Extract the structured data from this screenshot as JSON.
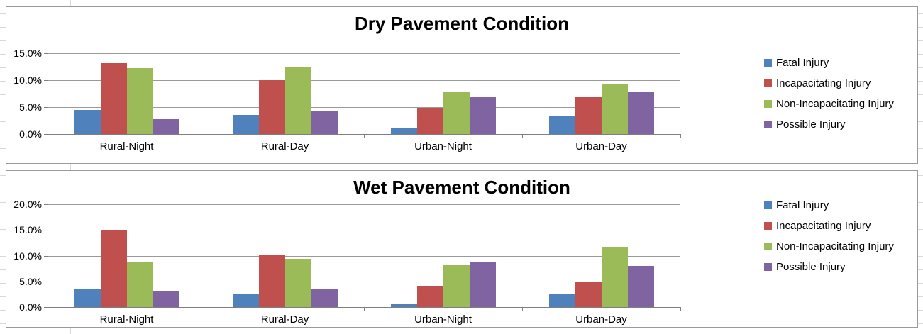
{
  "chart_data": [
    {
      "type": "bar",
      "title": "Dry Pavement Condition",
      "categories": [
        "Rural-Night",
        "Rural-Day",
        "Urban-Night",
        "Urban-Day"
      ],
      "series": [
        {
          "name": "Fatal Injury",
          "color": "#4F81BD",
          "values": [
            4.5,
            3.5,
            1.2,
            3.3
          ]
        },
        {
          "name": "Incapacitating Injury",
          "color": "#C0504D",
          "values": [
            13.2,
            10.0,
            4.9,
            6.9
          ]
        },
        {
          "name": "Non-Incapacitating Injury",
          "color": "#9BBB59",
          "values": [
            12.3,
            12.4,
            7.8,
            9.4
          ]
        },
        {
          "name": "Possible Injury",
          "color": "#8064A2",
          "values": [
            2.7,
            4.4,
            6.9,
            7.7
          ]
        }
      ],
      "xlabel": "",
      "ylabel": "",
      "ylim": [
        0,
        15
      ],
      "ytick_step": 5,
      "ytick_labels": [
        "0.0%",
        "5.0%",
        "10.0%",
        "15.0%"
      ],
      "grid": true,
      "legend_position": "right"
    },
    {
      "type": "bar",
      "title": "Wet Pavement Condition",
      "categories": [
        "Rural-Night",
        "Rural-Day",
        "Urban-Night",
        "Urban-Day"
      ],
      "series": [
        {
          "name": "Fatal Injury",
          "color": "#4F81BD",
          "values": [
            3.6,
            2.5,
            0.7,
            2.5
          ]
        },
        {
          "name": "Incapacitating Injury",
          "color": "#C0504D",
          "values": [
            15.0,
            10.2,
            4.0,
            5.0
          ]
        },
        {
          "name": "Non-Incapacitating Injury",
          "color": "#9BBB59",
          "values": [
            8.7,
            9.4,
            8.2,
            11.6
          ]
        },
        {
          "name": "Possible Injury",
          "color": "#8064A2",
          "values": [
            3.1,
            3.4,
            8.7,
            8.0
          ]
        }
      ],
      "xlabel": "",
      "ylabel": "",
      "ylim": [
        0,
        20
      ],
      "ytick_step": 5,
      "ytick_labels": [
        "0.0%",
        "5.0%",
        "10.0%",
        "15.0%",
        "20.0%"
      ],
      "grid": true,
      "legend_position": "right"
    }
  ]
}
